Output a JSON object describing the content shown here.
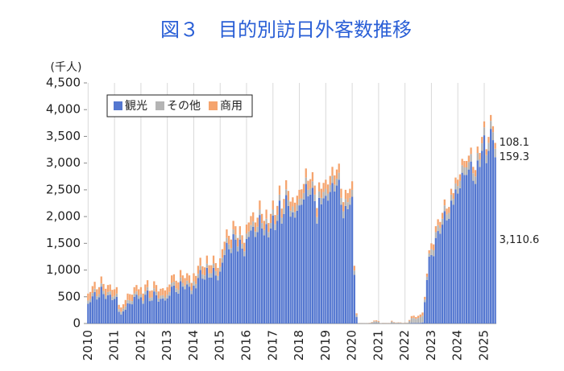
{
  "chart_data": {
    "type": "stacked_bar",
    "title": "図３　目的別訪日外客数推移",
    "y_unit_label": "(千人)",
    "ylim": [
      0,
      4500
    ],
    "yticks": [
      0,
      500,
      {
        "value": 1000,
        "label": "1,000"
      },
      {
        "value": 1500,
        "label": "1,500"
      },
      {
        "value": 2000,
        "label": "2,000"
      },
      {
        "value": 2500,
        "label": "2,500"
      },
      {
        "value": 3000,
        "label": "3,000"
      },
      {
        "value": 3500,
        "label": "3,500"
      },
      {
        "value": 4000,
        "label": "4,000"
      },
      {
        "value": 4500,
        "label": "4,500"
      }
    ],
    "grid": "x",
    "legend": "upper left",
    "categories": [
      "2010",
      null,
      null,
      null,
      null,
      null,
      null,
      null,
      null,
      null,
      null,
      null,
      "2011",
      null,
      null,
      null,
      null,
      null,
      null,
      null,
      null,
      null,
      null,
      null,
      "2012",
      null,
      null,
      null,
      null,
      null,
      null,
      null,
      null,
      null,
      null,
      null,
      "2013",
      null,
      null,
      null,
      null,
      null,
      null,
      null,
      null,
      null,
      null,
      null,
      "2014",
      null,
      null,
      null,
      null,
      null,
      null,
      null,
      null,
      null,
      null,
      null,
      "2015",
      null,
      null,
      null,
      null,
      null,
      null,
      null,
      null,
      null,
      null,
      null,
      "2016",
      null,
      null,
      null,
      null,
      null,
      null,
      null,
      null,
      null,
      null,
      null,
      "2017",
      null,
      null,
      null,
      null,
      null,
      null,
      null,
      null,
      null,
      null,
      null,
      "2018",
      null,
      null,
      null,
      null,
      null,
      null,
      null,
      null,
      null,
      null,
      null,
      "2019",
      null,
      null,
      null,
      null,
      null,
      null,
      null,
      null,
      null,
      null,
      null,
      "2020",
      null,
      null,
      null,
      null,
      null,
      null,
      null,
      null,
      null,
      null,
      null,
      "2021",
      null,
      null,
      null,
      null,
      null,
      null,
      null,
      null,
      null,
      null,
      null,
      "2022",
      null,
      null,
      null,
      null,
      null,
      null,
      null,
      null,
      null,
      null,
      null,
      "2023",
      null,
      null,
      null,
      null,
      null,
      null,
      null,
      null,
      null,
      null,
      null,
      "2024",
      null,
      null,
      null,
      null,
      null,
      null,
      null,
      null,
      null,
      null,
      null,
      "2025",
      null,
      null,
      null,
      null,
      null
    ],
    "series": [
      {
        "name": "観光",
        "color": "#5477d0",
        "value_labels": {
          "185": "3,110.6"
        },
        "values": [
          370,
          400,
          510,
          590,
          450,
          490,
          690,
          550,
          460,
          530,
          540,
          440,
          460,
          500,
          220,
          170,
          230,
          260,
          380,
          370,
          360,
          500,
          540,
          460,
          490,
          370,
          540,
          620,
          420,
          430,
          600,
          530,
          410,
          460,
          470,
          430,
          470,
          520,
          690,
          710,
          590,
          560,
          790,
          690,
          640,
          730,
          690,
          550,
          710,
          660,
          850,
          1000,
          840,
          820,
          1040,
          860,
          860,
          1040,
          900,
          810,
          970,
          1140,
          1280,
          1510,
          1390,
          1320,
          1670,
          1570,
          1350,
          1570,
          1400,
          1260,
          1580,
          1620,
          1740,
          1810,
          1620,
          1710,
          2030,
          1780,
          1650,
          1860,
          1610,
          1780,
          2020,
          1750,
          1920,
          2300,
          1870,
          2050,
          2400,
          2200,
          2000,
          2080,
          1980,
          2110,
          2210,
          2220,
          2320,
          2610,
          2380,
          2410,
          2540,
          2290,
          1870,
          2350,
          2230,
          2340,
          2390,
          2300,
          2460,
          2630,
          2470,
          2580,
          2690,
          2220,
          1970,
          2200,
          2140,
          2220,
          2370,
          910,
          120,
          0,
          0,
          0,
          0,
          1,
          1,
          2,
          4,
          4,
          3,
          1,
          1,
          1,
          1,
          1,
          3,
          2,
          1,
          2,
          1,
          1,
          1,
          1,
          4,
          10,
          10,
          9,
          10,
          12,
          20,
          399,
          814,
          1250,
          1280,
          1260,
          1600,
          1730,
          1680,
          1850,
          2100,
          1930,
          1960,
          2300,
          2220,
          2510,
          2430,
          2530,
          2820,
          2780,
          2780,
          2880,
          3030,
          2670,
          2610,
          3050,
          2930,
          3230,
          3520,
          3000,
          3230,
          3640,
          3430,
          3110.6
        ]
      },
      {
        "name": "その他",
        "color": "#b4b4b4",
        "value_labels": {
          "185": "159.3"
        },
        "values": [
          60,
          60,
          60,
          60,
          60,
          60,
          60,
          60,
          60,
          60,
          60,
          60,
          60,
          60,
          50,
          50,
          50,
          60,
          60,
          60,
          60,
          60,
          60,
          60,
          60,
          60,
          60,
          60,
          60,
          60,
          60,
          60,
          60,
          60,
          60,
          60,
          70,
          70,
          70,
          70,
          70,
          70,
          70,
          70,
          70,
          70,
          70,
          70,
          80,
          80,
          80,
          80,
          80,
          80,
          80,
          80,
          80,
          80,
          80,
          80,
          90,
          90,
          90,
          90,
          90,
          90,
          90,
          90,
          90,
          90,
          90,
          90,
          100,
          100,
          100,
          100,
          100,
          100,
          100,
          100,
          100,
          100,
          100,
          100,
          110,
          110,
          110,
          110,
          110,
          110,
          110,
          110,
          110,
          110,
          110,
          110,
          120,
          120,
          120,
          120,
          120,
          120,
          120,
          120,
          120,
          120,
          120,
          120,
          130,
          130,
          130,
          130,
          130,
          130,
          130,
          130,
          130,
          130,
          130,
          130,
          130,
          80,
          40,
          2,
          1,
          2,
          3,
          6,
          9,
          18,
          36,
          38,
          30,
          4,
          8,
          7,
          6,
          6,
          33,
          17,
          12,
          14,
          13,
          8,
          11,
          11,
          42,
          89,
          94,
          77,
          93,
          108,
          126,
          50,
          60,
          60,
          110,
          110,
          110,
          110,
          110,
          110,
          110,
          110,
          110,
          110,
          110,
          110,
          140,
          140,
          140,
          140,
          140,
          140,
          140,
          140,
          140,
          140,
          140,
          140,
          150,
          150,
          150,
          150,
          150,
          159.3
        ]
      },
      {
        "name": "商用",
        "color": "#f5a46e",
        "value_labels": {
          "185": "108.1"
        },
        "values": [
          130,
          130,
          130,
          130,
          130,
          130,
          130,
          130,
          130,
          130,
          130,
          130,
          120,
          120,
          80,
          80,
          80,
          120,
          120,
          120,
          120,
          120,
          120,
          120,
          130,
          130,
          130,
          130,
          130,
          130,
          130,
          130,
          130,
          130,
          130,
          130,
          140,
          140,
          140,
          140,
          140,
          140,
          140,
          140,
          140,
          140,
          140,
          140,
          150,
          150,
          150,
          150,
          150,
          150,
          150,
          150,
          150,
          150,
          150,
          150,
          160,
          160,
          160,
          160,
          160,
          160,
          160,
          160,
          160,
          160,
          160,
          160,
          170,
          170,
          170,
          170,
          170,
          170,
          170,
          170,
          170,
          170,
          170,
          170,
          170,
          170,
          170,
          170,
          170,
          170,
          170,
          170,
          170,
          170,
          170,
          170,
          170,
          170,
          170,
          170,
          170,
          170,
          170,
          170,
          170,
          170,
          170,
          170,
          170,
          170,
          170,
          170,
          170,
          170,
          170,
          170,
          170,
          170,
          170,
          170,
          160,
          90,
          30,
          1,
          1,
          1,
          1,
          2,
          4,
          8,
          16,
          17,
          13,
          2,
          3,
          3,
          3,
          3,
          15,
          7,
          5,
          6,
          6,
          3,
          5,
          5,
          20,
          40,
          43,
          35,
          42,
          49,
          60,
          50,
          60,
          60,
          110,
          110,
          110,
          110,
          110,
          110,
          110,
          110,
          110,
          110,
          110,
          110,
          120,
          120,
          120,
          120,
          120,
          120,
          120,
          120,
          120,
          120,
          120,
          120,
          110,
          110,
          110,
          110,
          110,
          108.1
        ]
      }
    ]
  }
}
